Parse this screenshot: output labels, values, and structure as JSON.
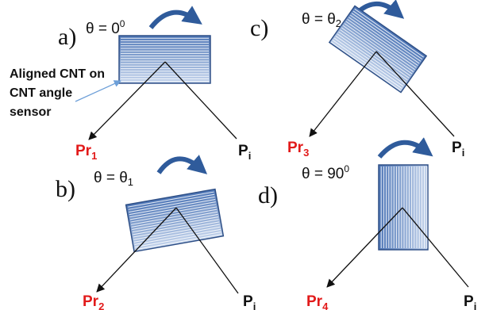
{
  "colors": {
    "sensor_fill_top": "#4f77b7",
    "sensor_fill_bottom": "#c4d4ec",
    "sensor_border": "#2e4f86",
    "rotation_arrow": "#2f5b9b",
    "reflected_label": "#e21a1a",
    "incident_label": "#111111",
    "annotation_arrow": "#6d9fd8"
  },
  "icons": {
    "rotation": "curved-arrow-clockwise",
    "beam_head": "arrow-head"
  },
  "annotation": {
    "lines": [
      "Aligned CNT on",
      "CNT angle",
      "sensor"
    ]
  },
  "panels": [
    {
      "id": "a",
      "label": "a)",
      "theta_text": "θ = 0",
      "theta_sub": "",
      "theta_sup": "0",
      "reflected_label": "Pr",
      "reflected_sub": "1",
      "incident_label": "P",
      "incident_sub": "i",
      "rotation_deg": 0
    },
    {
      "id": "b",
      "label": "b)",
      "theta_text": "θ = θ",
      "theta_sub": "1",
      "theta_sup": "",
      "reflected_label": "Pr",
      "reflected_sub": "2",
      "incident_label": "P",
      "incident_sub": "i",
      "rotation_deg": -10
    },
    {
      "id": "c",
      "label": "c)",
      "theta_text": "θ = θ",
      "theta_sub": "2",
      "theta_sup": "",
      "reflected_label": "Pr",
      "reflected_sub": "3",
      "incident_label": "P",
      "incident_sub": "i",
      "rotation_deg": 35
    },
    {
      "id": "d",
      "label": "d)",
      "theta_text": "θ = 90",
      "theta_sub": "",
      "theta_sup": "0",
      "reflected_label": "Pr",
      "reflected_sub": "4",
      "incident_label": "P",
      "incident_sub": "i",
      "rotation_deg": 90
    }
  ]
}
